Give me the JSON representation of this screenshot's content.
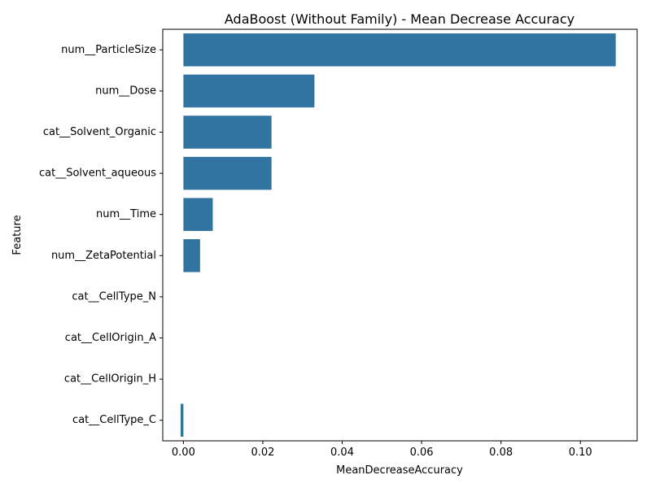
{
  "chart_data": {
    "type": "bar",
    "orientation": "horizontal",
    "title": "AdaBoost (Without Family) - Mean Decrease Accuracy",
    "xlabel": "MeanDecreaseAccuracy",
    "ylabel": "Feature",
    "categories": [
      "num__ParticleSize",
      "num__Dose",
      "cat__Solvent_Organic",
      "cat__Solvent_aqueous",
      "num__Time",
      "num__ZetaPotential",
      "cat__CellType_N",
      "cat__CellOrigin_A",
      "cat__CellOrigin_H",
      "cat__CellType_C"
    ],
    "values": [
      0.1089,
      0.033,
      0.0222,
      0.0222,
      0.0074,
      0.0042,
      0.0,
      0.0,
      0.0,
      -0.0007
    ],
    "xlim": [
      -0.0052,
      0.1143
    ],
    "xticks": [
      0.0,
      0.02,
      0.04,
      0.06,
      0.08,
      0.1
    ],
    "xtick_labels": [
      "0.00",
      "0.02",
      "0.04",
      "0.06",
      "0.08",
      "0.10"
    ],
    "grid": false,
    "bar_color": "#3274a1"
  }
}
